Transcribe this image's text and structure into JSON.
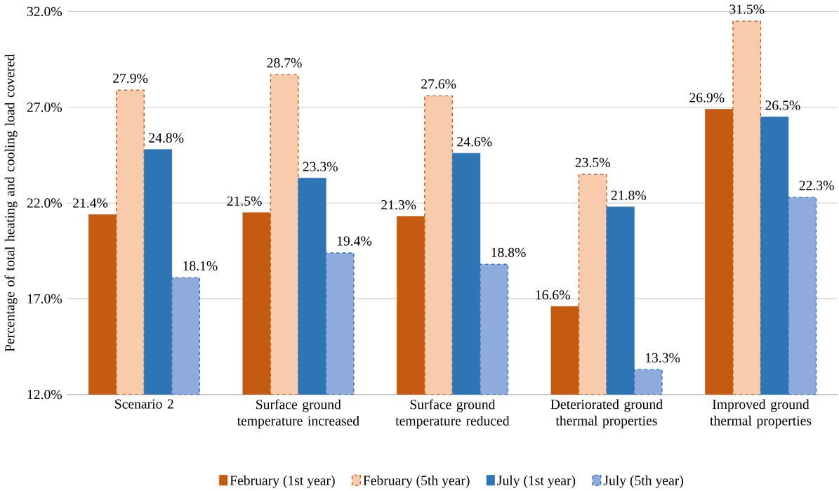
{
  "chart_data": {
    "type": "bar",
    "ylabel": "Percentage of total heating and cooling load covered",
    "categories": [
      "Scenario 2",
      "Surface ground temperature increased",
      "Surface ground temperature reduced",
      "Deteriorated ground thermal properties",
      "Improved ground thermal properties"
    ],
    "series": [
      {
        "name": "February (1st year)",
        "color": "#c55a11",
        "line_style": "solid",
        "values": [
          21.4,
          21.5,
          21.3,
          16.6,
          26.9
        ],
        "value_labels": [
          "21.4%",
          "21.5%",
          "21.3%",
          "16.6%",
          "26.9%"
        ]
      },
      {
        "name": "February (5th year)",
        "color": "#f8cbad",
        "line_style": "dashed",
        "values": [
          27.9,
          28.7,
          27.6,
          23.5,
          31.5
        ],
        "value_labels": [
          "27.9%",
          "28.7%",
          "27.6%",
          "23.5%",
          "31.5%"
        ]
      },
      {
        "name": "July (1st year)",
        "color": "#2e75b6",
        "line_style": "solid",
        "values": [
          24.8,
          23.3,
          24.6,
          21.8,
          26.5
        ],
        "value_labels": [
          "24.8%",
          "23.3%",
          "24.6%",
          "21.8%",
          "26.5%"
        ]
      },
      {
        "name": "July (5th year)",
        "color": "#8faadc",
        "line_style": "dashed",
        "values": [
          18.1,
          19.4,
          18.8,
          13.3,
          22.3
        ],
        "value_labels": [
          "18.1%",
          "19.4%",
          "18.8%",
          "13.3%",
          "22.3%"
        ]
      }
    ],
    "ylim": [
      12,
      32
    ],
    "yticks": [
      {
        "value": 12,
        "label": "12.0%"
      },
      {
        "value": 17,
        "label": "17.0%"
      },
      {
        "value": 22,
        "label": "22.0%"
      },
      {
        "value": 27,
        "label": "27.0%"
      },
      {
        "value": 32,
        "label": "32.0%"
      }
    ],
    "grid": "y",
    "legend": "bottom"
  }
}
